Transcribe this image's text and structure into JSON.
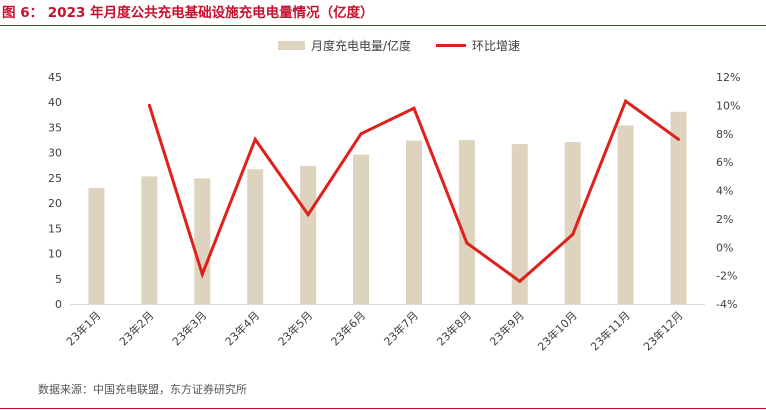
{
  "title": "图 6： 2023 年月度公共充电基础设施充电电量情况（亿度）",
  "source": "数据来源：中国充电联盟，东方证券研究所",
  "chart_data": {
    "type": "bar",
    "categories": [
      "23年1月",
      "23年2月",
      "23年3月",
      "23年4月",
      "23年5月",
      "23年6月",
      "23年7月",
      "23年8月",
      "23年9月",
      "23年10月",
      "23年11月",
      "23年12月"
    ],
    "series": [
      {
        "name": "月度充电电量/亿度",
        "type": "bar",
        "axis": "left",
        "color": "#ddd3bf",
        "values": [
          23.0,
          25.3,
          24.9,
          26.7,
          27.4,
          29.6,
          32.4,
          32.5,
          31.7,
          32.1,
          35.4,
          38.1
        ]
      },
      {
        "name": "环比增速",
        "type": "line",
        "axis": "right",
        "color": "#e0201b",
        "values": [
          null,
          10.0,
          -1.9,
          7.6,
          2.3,
          8.0,
          9.8,
          0.3,
          -2.4,
          0.9,
          10.3,
          7.6
        ]
      }
    ],
    "y_left": {
      "min": 0,
      "max": 45,
      "step": 5,
      "ticks": [
        "0",
        "5",
        "10",
        "15",
        "20",
        "25",
        "30",
        "35",
        "40",
        "45"
      ]
    },
    "y_right": {
      "min": -4,
      "max": 12,
      "step": 2,
      "ticks": [
        "-4%",
        "-2%",
        "0%",
        "2%",
        "4%",
        "6%",
        "8%",
        "10%",
        "12%"
      ]
    },
    "legend_position": "top-center",
    "grid": false
  }
}
